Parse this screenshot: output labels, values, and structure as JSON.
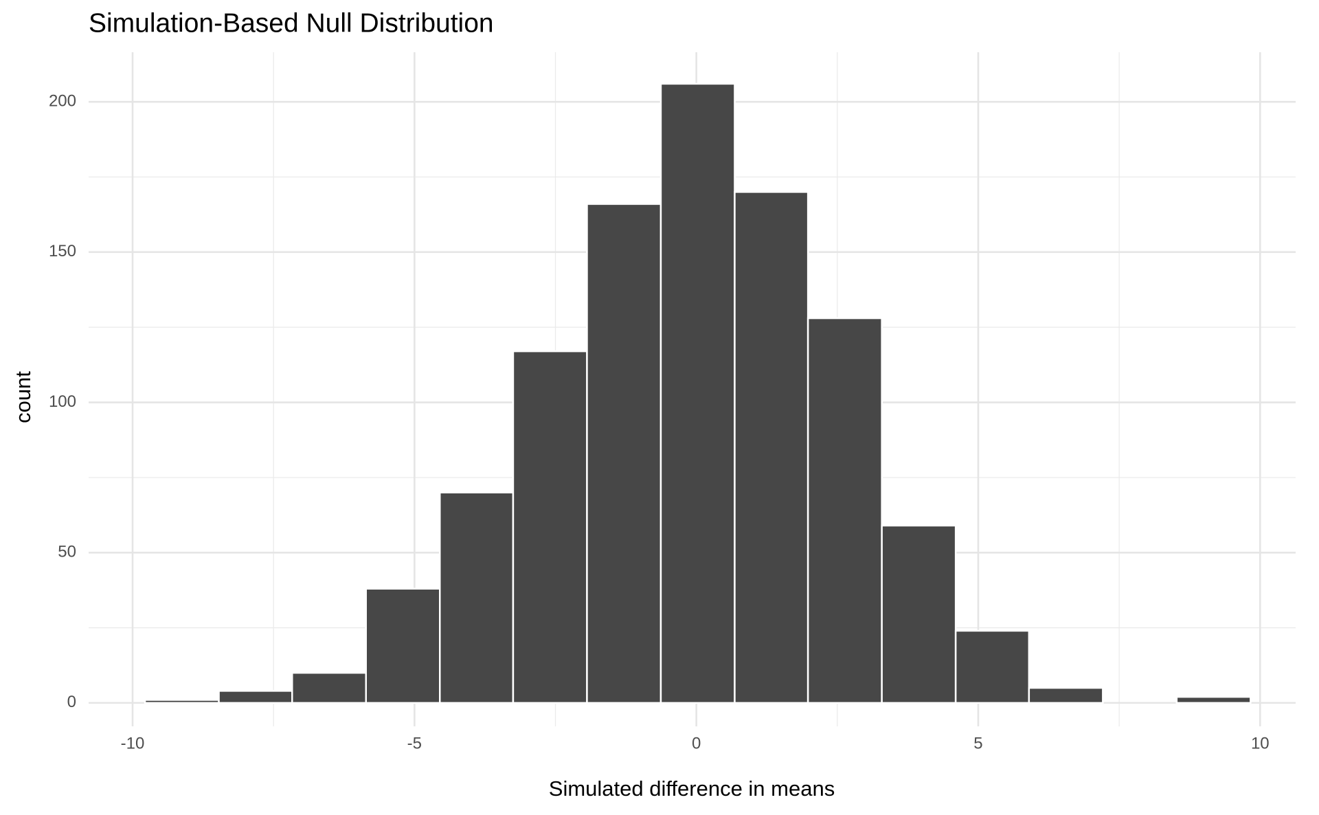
{
  "chart_data": {
    "type": "histogram",
    "title": "Simulation-Based Null Distribution",
    "x_label": "Simulated difference in means",
    "y_label": "count",
    "bins": [
      -9.78,
      -8.47,
      -7.17,
      -5.86,
      -4.55,
      -3.25,
      -1.94,
      -0.63,
      0.68,
      1.98,
      3.29,
      4.6,
      5.9,
      7.21,
      8.52,
      9.83
    ],
    "values": [
      1,
      4,
      10,
      38,
      70,
      117,
      166,
      206,
      170,
      128,
      59,
      24,
      5,
      0,
      2
    ],
    "color": "#474747",
    "xlim": [
      -10.78,
      10.63
    ],
    "xticks": [
      -10,
      -5,
      0,
      5,
      10
    ],
    "minor_xticks": [
      -7.5,
      -2.5,
      2.5,
      7.5
    ],
    "ylim": [
      -7.8,
      216.5
    ],
    "yticks": [
      0,
      50,
      100,
      150,
      200
    ],
    "minor_yticks": [
      25,
      75,
      125,
      175
    ],
    "grid": true
  }
}
